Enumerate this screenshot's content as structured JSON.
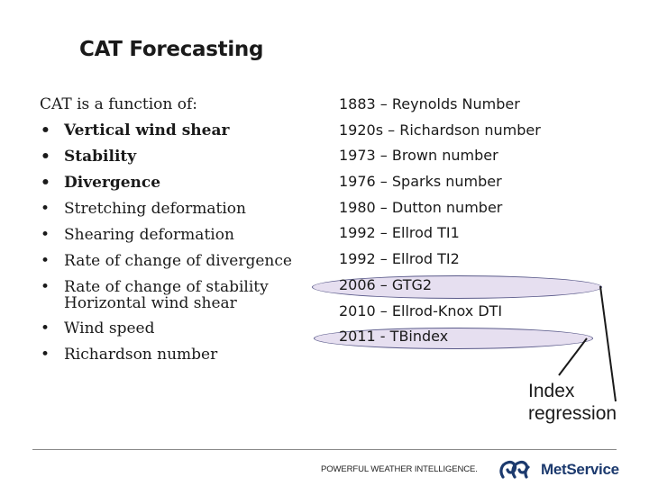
{
  "title": "CAT Forecasting",
  "left": {
    "intro": "CAT  is a function of:",
    "bullet_glyph": "•",
    "items": [
      {
        "label": "Vertical wind shear",
        "bold": true
      },
      {
        "label": "Stability",
        "bold": true
      },
      {
        "label": "Divergence",
        "bold": true
      },
      {
        "label": "Stretching deformation",
        "bold": false
      },
      {
        "label": "Shearing deformation",
        "bold": false
      },
      {
        "label": "Rate of change of divergence",
        "bold": false
      },
      {
        "label": "Rate of change of stability",
        "bold": false,
        "continuation": "Horizontal wind shear"
      },
      {
        "label": "Wind speed",
        "bold": false
      },
      {
        "label": "Richardson number",
        "bold": false
      }
    ]
  },
  "right": {
    "rows": [
      "1883 – Reynolds Number",
      "1920s – Richardson number",
      "1973 – Brown number",
      "1976 – Sparks number",
      "1980 – Dutton number",
      "1992 – Ellrod TI1",
      "1992 – Ellrod TI2",
      "2006 – GTG2",
      "2010 – Ellrod-Knox DTI",
      "2011 - TBindex"
    ]
  },
  "annotation": {
    "line1": "Index",
    "line2": "regression"
  },
  "footer": {
    "tagline": "POWERFUL WEATHER INTELLIGENCE.",
    "logo_text": "MetService",
    "logo_color": "#1c3a6e"
  },
  "colors": {
    "highlight_fill": "#e6dff0",
    "highlight_stroke": "#5a5a8a"
  }
}
